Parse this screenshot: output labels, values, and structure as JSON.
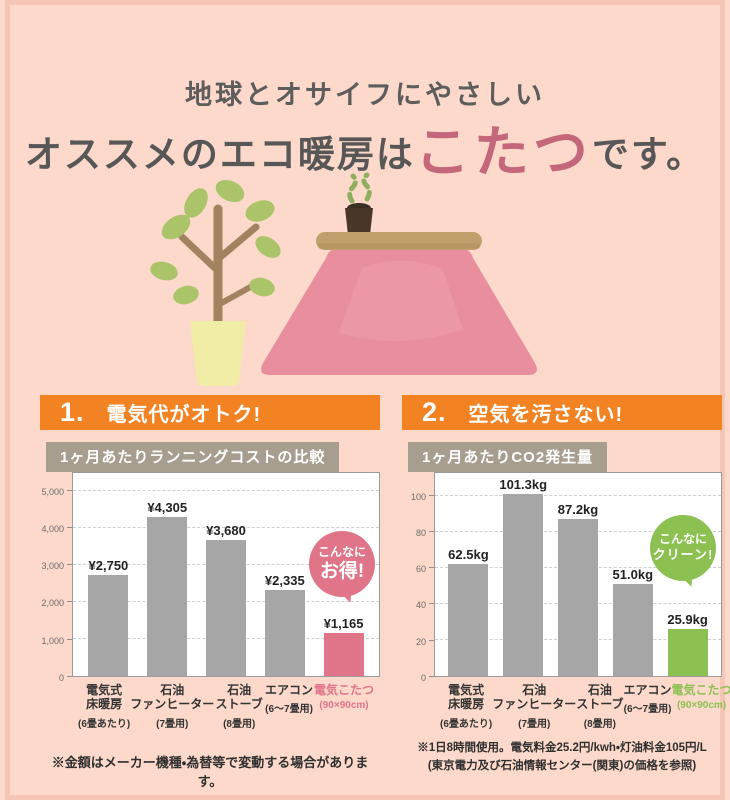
{
  "page": {
    "title_line1": "地球とオサイフにやさしい",
    "title_line2_prefix": "オススメのエコ暖房は",
    "title_line2_highlight": "こたつ",
    "title_line2_suffix": "です。",
    "colors": {
      "background": "#fcd9ca",
      "border": "#f6c5b5",
      "accent_orange": "#f28222",
      "chart_tab_gray": "#a79e90",
      "bar_gray": "#a6a6a6",
      "accent_pink": "#e0758a",
      "accent_green": "#8cc152",
      "title_highlight_pink": "#c4677b"
    }
  },
  "sections": [
    {
      "number": "1.",
      "heading": "電気代がオトク!",
      "badge": {
        "line1": "こんなに",
        "line2": "お得!",
        "color": "#e0758a"
      },
      "footnote_lines": [
        "※金額はメーカー機種・為替等で変動する場合があります。"
      ]
    },
    {
      "number": "2.",
      "heading": "空気を汚さない!",
      "badge": {
        "line1": "こんなに",
        "line2": "クリーン!",
        "color": "#8cc152"
      },
      "footnote_lines": [
        "※1日8時間使用。電気料金25.2円/kwh・灯油料金105円/L",
        "(東京電力及び石油情報センター(関東)の価格を参照)"
      ]
    }
  ],
  "chart_data": [
    {
      "type": "bar",
      "title": "1ヶ月あたりランニングコストの比較",
      "unit_label": "(円)",
      "categories": [
        [
          "電気式",
          "床暖房"
        ],
        [
          "石油",
          "ファンヒーター"
        ],
        [
          "石油",
          "ストーブ"
        ],
        [
          "エアコン"
        ],
        [
          "電気こたつ"
        ]
      ],
      "category_notes": [
        "(6畳あたり)",
        "(7畳用)",
        "(8畳用)",
        "(6〜7畳用)",
        "(90×90cm)"
      ],
      "values": [
        2750,
        4305,
        3680,
        2335,
        1165
      ],
      "value_labels": [
        "¥2,750",
        "¥4,305",
        "¥3,680",
        "¥2,335",
        "¥1,165"
      ],
      "yticks": [
        0,
        1000,
        2000,
        3000,
        4000,
        5000
      ],
      "ytick_labels": [
        "0",
        "1,000",
        "2,000",
        "3,000",
        "4,000",
        "5,000"
      ],
      "ylim": [
        0,
        5500
      ],
      "grid": true,
      "bar_colors": [
        "#a6a6a6",
        "#a6a6a6",
        "#a6a6a6",
        "#a6a6a6",
        "#e0758a"
      ],
      "highlight_index": 4,
      "highlight_color": "#e0758a"
    },
    {
      "type": "bar",
      "title": "1ヶ月あたりCO2発生量",
      "unit_label": "(kg)",
      "categories": [
        [
          "電気式",
          "床暖房"
        ],
        [
          "石油",
          "ファンヒーター"
        ],
        [
          "石油",
          "ストーブ"
        ],
        [
          "エアコン"
        ],
        [
          "電気こたつ"
        ]
      ],
      "category_notes": [
        "(6畳あたり)",
        "(7畳用)",
        "(8畳用)",
        "(6〜7畳用)",
        "(90×90cm)"
      ],
      "values": [
        62.5,
        101.3,
        87.2,
        51.0,
        25.9
      ],
      "value_labels": [
        "62.5kg",
        "101.3kg",
        "87.2kg",
        "51.0kg",
        "25.9kg"
      ],
      "yticks": [
        0,
        20,
        40,
        60,
        80,
        100
      ],
      "ytick_labels": [
        "0",
        "20",
        "40",
        "60",
        "80",
        "100"
      ],
      "ylim": [
        0,
        113
      ],
      "grid": true,
      "bar_colors": [
        "#a6a6a6",
        "#a6a6a6",
        "#a6a6a6",
        "#a6a6a6",
        "#8cc152"
      ],
      "highlight_index": 4,
      "highlight_color": "#8cc152"
    }
  ]
}
